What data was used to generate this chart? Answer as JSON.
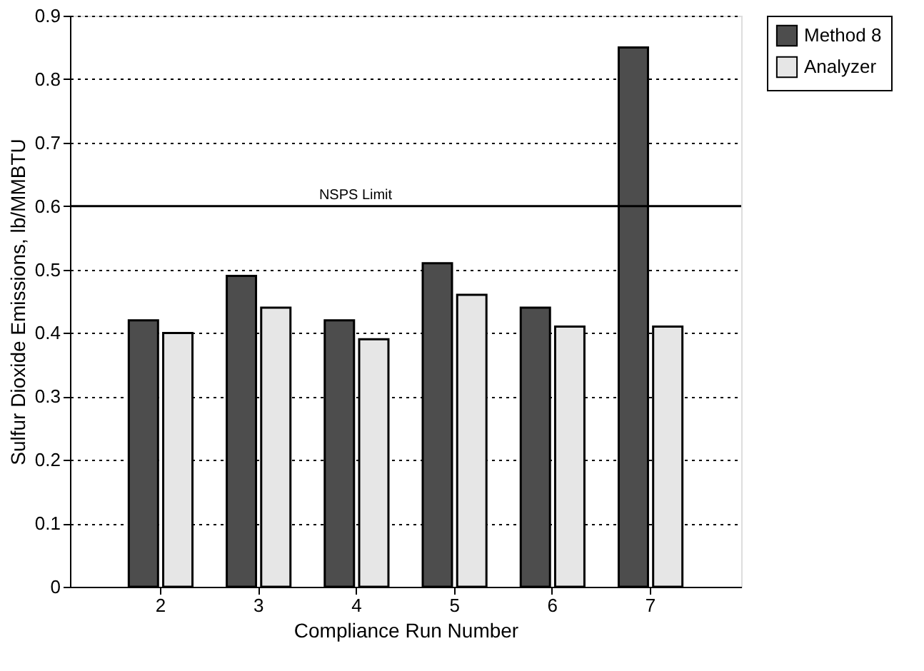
{
  "chart_data": {
    "type": "bar",
    "xlabel": "Compliance Run Number",
    "ylabel": "Sulfur Dioxide Emissions, lb/MMBTU",
    "categories": [
      "2",
      "3",
      "4",
      "5",
      "6",
      "7"
    ],
    "series": [
      {
        "name": "Method 8",
        "color": "#4d4d4d",
        "values": [
          0.42,
          0.49,
          0.42,
          0.51,
          0.44,
          0.85
        ]
      },
      {
        "name": "Analyzer",
        "color": "#e6e6e6",
        "values": [
          0.4,
          0.44,
          0.39,
          0.46,
          0.41,
          0.41
        ]
      }
    ],
    "ylim": [
      0,
      0.9
    ],
    "yticks": [
      0,
      0.1,
      0.2,
      0.3,
      0.4,
      0.5,
      0.6,
      0.7,
      0.8,
      0.9
    ],
    "grid": "y",
    "legend": "top right",
    "ref_lines": [
      {
        "axis": "y",
        "value": 0.6,
        "label": "NSPS Limit",
        "color": "#000000"
      }
    ]
  }
}
